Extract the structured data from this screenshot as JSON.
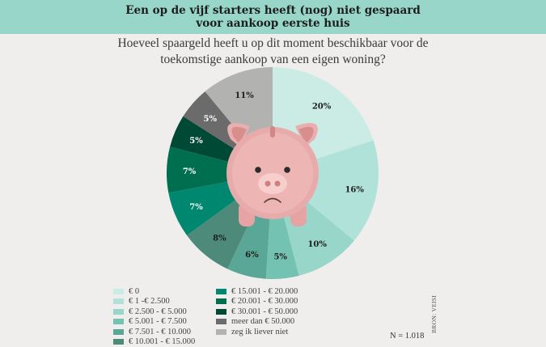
{
  "header": {
    "title": "Een op de vijf starters heeft (nog) niet gespaard\nvoor aankoop eerste huis"
  },
  "subtitle": "Hoeveel spaargeld heeft u op dit moment beschikbaar voor de\ntoekomstige aankoop van een eigen woning?",
  "footer": {
    "n": "N = 1.018",
    "source": "BRON: VEISI"
  },
  "chart_data": {
    "type": "pie",
    "title": "Een op de vijf starters heeft (nog) niet gespaard voor aankoop eerste huis",
    "subtitle": "Hoeveel spaargeld heeft u op dit moment beschikbaar voor de toekomstige aankoop van een eigen woning?",
    "unit": "%",
    "start_angle": "12 o'clock, clockwise",
    "categories": [
      "€ 0",
      "€ 1 -€ 2.500",
      "€ 2.500 - € 5.000",
      "€ 5.001 - € 7.500",
      "€ 7.501 - € 10.000",
      "€ 10.001 - € 15.000",
      "€ 15.001 - € 20.000",
      "€ 20.001 - € 30.000",
      "€ 30.001 - € 50.000",
      "meer dan € 50.000",
      "zeg ik liever niet"
    ],
    "values": [
      20,
      16,
      10,
      5,
      6,
      8,
      7,
      7,
      5,
      5,
      11
    ],
    "colors": [
      "#cbece5",
      "#b1e2da",
      "#98d6ca",
      "#74c2b1",
      "#5aa797",
      "#4d8a7a",
      "#00876f",
      "#006f50",
      "#004a35",
      "#6b6b6b",
      "#b2b2b0"
    ],
    "label_colors": [
      "#1d1d1b",
      "#1d1d1b",
      "#1d1d1b",
      "#1d1d1b",
      "#1d1d1b",
      "#1d1d1b",
      "#ffffff",
      "#ffffff",
      "#ffffff",
      "#ffffff",
      "#1d1d1b"
    ],
    "legend_position": "bottom-left, two columns",
    "n": "N = 1.018"
  },
  "legend": {
    "col1": [
      {
        "label": "€ 0",
        "color": "#cbece5"
      },
      {
        "label": "€ 1 -€ 2.500",
        "color": "#b1e2da"
      },
      {
        "label": "€ 2.500 - € 5.000",
        "color": "#98d6ca"
      },
      {
        "label": "€ 5.001 - € 7.500",
        "color": "#74c2b1"
      },
      {
        "label": "€ 7.501 - € 10.000",
        "color": "#5aa797"
      },
      {
        "label": "€ 10.001 - € 15.000",
        "color": "#4d8a7a"
      }
    ],
    "col2": [
      {
        "label": "€ 15.001 - € 20.000",
        "color": "#00876f"
      },
      {
        "label": "€ 20.001 - € 30.000",
        "color": "#006f50"
      },
      {
        "label": "€ 30.001 - € 50.000",
        "color": "#004a35"
      },
      {
        "label": "meer dan € 50.000",
        "color": "#6b6b6b"
      },
      {
        "label": "zeg ik liever niet",
        "color": "#b2b2b0"
      }
    ]
  }
}
